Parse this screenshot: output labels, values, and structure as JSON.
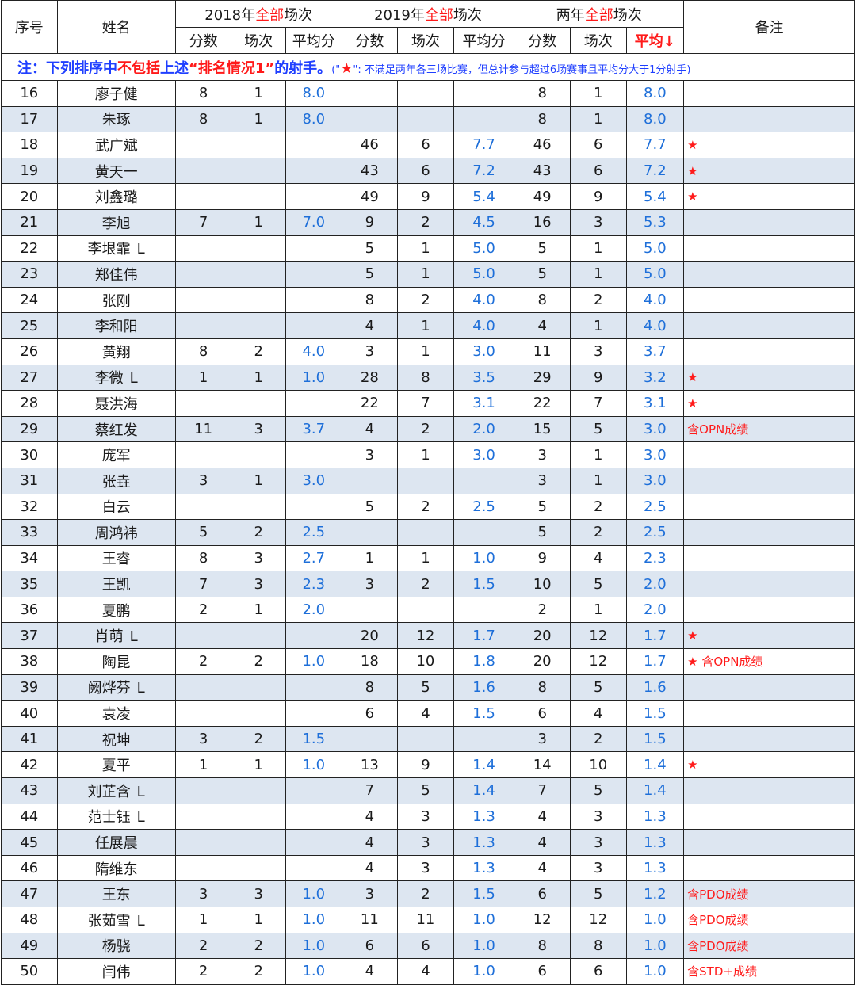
{
  "header": {
    "seq": "序号",
    "name": "姓名",
    "y2018": {
      "prefix": "2018年",
      "mid": "全部",
      "suffix": "场次"
    },
    "y2019": {
      "prefix": "2019年",
      "mid": "全部",
      "suffix": "场次"
    },
    "both": {
      "prefix": "两年",
      "mid": "全部",
      "suffix": "场次"
    },
    "remark": "备注",
    "sub": {
      "score": "分数",
      "games": "场次",
      "avg": "平均分",
      "avg_sorted": "平均↓"
    }
  },
  "note": {
    "lead": "注：下列排序中",
    "red1": "不包括",
    "mid": "上述",
    "red2": "“排名情况1”",
    "tail": "的射手。",
    "small_a": "(\"",
    "star": "★",
    "small_b": "\": 不满足两年各三场比赛，但总计参与超过6场赛事且平均分大于1分射手)"
  },
  "rows": [
    {
      "seq": "16",
      "name": "廖子健",
      "l": "",
      "s18": "8",
      "g18": "1",
      "a18": "8.0",
      "s19": "",
      "g19": "",
      "a19": "",
      "st": "8",
      "gt": "1",
      "at": "8.0",
      "remark": ""
    },
    {
      "seq": "17",
      "name": "朱琢",
      "l": "",
      "s18": "8",
      "g18": "1",
      "a18": "8.0",
      "s19": "",
      "g19": "",
      "a19": "",
      "st": "8",
      "gt": "1",
      "at": "8.0",
      "remark": ""
    },
    {
      "seq": "18",
      "name": "武广斌",
      "l": "",
      "s18": "",
      "g18": "",
      "a18": "",
      "s19": "46",
      "g19": "6",
      "a19": "7.7",
      "st": "46",
      "gt": "6",
      "at": "7.7",
      "remark": "★"
    },
    {
      "seq": "19",
      "name": "黄天一",
      "l": "",
      "s18": "",
      "g18": "",
      "a18": "",
      "s19": "43",
      "g19": "6",
      "a19": "7.2",
      "st": "43",
      "gt": "6",
      "at": "7.2",
      "remark": "★"
    },
    {
      "seq": "20",
      "name": "刘鑫璐",
      "l": "",
      "s18": "",
      "g18": "",
      "a18": "",
      "s19": "49",
      "g19": "9",
      "a19": "5.4",
      "st": "49",
      "gt": "9",
      "at": "5.4",
      "remark": "★"
    },
    {
      "seq": "21",
      "name": "李旭",
      "l": "",
      "s18": "7",
      "g18": "1",
      "a18": "7.0",
      "s19": "9",
      "g19": "2",
      "a19": "4.5",
      "st": "16",
      "gt": "3",
      "at": "5.3",
      "remark": ""
    },
    {
      "seq": "22",
      "name": "李垠霏",
      "l": "L",
      "s18": "",
      "g18": "",
      "a18": "",
      "s19": "5",
      "g19": "1",
      "a19": "5.0",
      "st": "5",
      "gt": "1",
      "at": "5.0",
      "remark": ""
    },
    {
      "seq": "23",
      "name": "郑佳伟",
      "l": "",
      "s18": "",
      "g18": "",
      "a18": "",
      "s19": "5",
      "g19": "1",
      "a19": "5.0",
      "st": "5",
      "gt": "1",
      "at": "5.0",
      "remark": ""
    },
    {
      "seq": "24",
      "name": "张刚",
      "l": "",
      "s18": "",
      "g18": "",
      "a18": "",
      "s19": "8",
      "g19": "2",
      "a19": "4.0",
      "st": "8",
      "gt": "2",
      "at": "4.0",
      "remark": ""
    },
    {
      "seq": "25",
      "name": "李和阳",
      "l": "",
      "s18": "",
      "g18": "",
      "a18": "",
      "s19": "4",
      "g19": "1",
      "a19": "4.0",
      "st": "4",
      "gt": "1",
      "at": "4.0",
      "remark": ""
    },
    {
      "seq": "26",
      "name": "黄翔",
      "l": "",
      "s18": "8",
      "g18": "2",
      "a18": "4.0",
      "s19": "3",
      "g19": "1",
      "a19": "3.0",
      "st": "11",
      "gt": "3",
      "at": "3.7",
      "remark": ""
    },
    {
      "seq": "27",
      "name": "李微",
      "l": "L",
      "s18": "1",
      "g18": "1",
      "a18": "1.0",
      "s19": "28",
      "g19": "8",
      "a19": "3.5",
      "st": "29",
      "gt": "9",
      "at": "3.2",
      "remark": "★"
    },
    {
      "seq": "28",
      "name": "聂洪海",
      "l": "",
      "s18": "",
      "g18": "",
      "a18": "",
      "s19": "22",
      "g19": "7",
      "a19": "3.1",
      "st": "22",
      "gt": "7",
      "at": "3.1",
      "remark": "★"
    },
    {
      "seq": "29",
      "name": "蔡红发",
      "l": "",
      "s18": "11",
      "g18": "3",
      "a18": "3.7",
      "s19": "4",
      "g19": "2",
      "a19": "2.0",
      "st": "15",
      "gt": "5",
      "at": "3.0",
      "remark": "含OPN成绩"
    },
    {
      "seq": "30",
      "name": "庞军",
      "l": "",
      "s18": "",
      "g18": "",
      "a18": "",
      "s19": "3",
      "g19": "1",
      "a19": "3.0",
      "st": "3",
      "gt": "1",
      "at": "3.0",
      "remark": ""
    },
    {
      "seq": "31",
      "name": "张垚",
      "l": "",
      "s18": "3",
      "g18": "1",
      "a18": "3.0",
      "s19": "",
      "g19": "",
      "a19": "",
      "st": "3",
      "gt": "1",
      "at": "3.0",
      "remark": ""
    },
    {
      "seq": "32",
      "name": "白云",
      "l": "",
      "s18": "",
      "g18": "",
      "a18": "",
      "s19": "5",
      "g19": "2",
      "a19": "2.5",
      "st": "5",
      "gt": "2",
      "at": "2.5",
      "remark": ""
    },
    {
      "seq": "33",
      "name": "周鸿祎",
      "l": "",
      "s18": "5",
      "g18": "2",
      "a18": "2.5",
      "s19": "",
      "g19": "",
      "a19": "",
      "st": "5",
      "gt": "2",
      "at": "2.5",
      "remark": ""
    },
    {
      "seq": "34",
      "name": "王睿",
      "l": "",
      "s18": "8",
      "g18": "3",
      "a18": "2.7",
      "s19": "1",
      "g19": "1",
      "a19": "1.0",
      "st": "9",
      "gt": "4",
      "at": "2.3",
      "remark": ""
    },
    {
      "seq": "35",
      "name": "王凯",
      "l": "",
      "s18": "7",
      "g18": "3",
      "a18": "2.3",
      "s19": "3",
      "g19": "2",
      "a19": "1.5",
      "st": "10",
      "gt": "5",
      "at": "2.0",
      "remark": ""
    },
    {
      "seq": "36",
      "name": "夏鹏",
      "l": "",
      "s18": "2",
      "g18": "1",
      "a18": "2.0",
      "s19": "",
      "g19": "",
      "a19": "",
      "st": "2",
      "gt": "1",
      "at": "2.0",
      "remark": ""
    },
    {
      "seq": "37",
      "name": "肖萌",
      "l": "L",
      "s18": "",
      "g18": "",
      "a18": "",
      "s19": "20",
      "g19": "12",
      "a19": "1.7",
      "st": "20",
      "gt": "12",
      "at": "1.7",
      "remark": "★"
    },
    {
      "seq": "38",
      "name": "陶昆",
      "l": "",
      "s18": "2",
      "g18": "2",
      "a18": "1.0",
      "s19": "18",
      "g19": "10",
      "a19": "1.8",
      "st": "20",
      "gt": "12",
      "at": "1.7",
      "remark": "★ 含OPN成绩"
    },
    {
      "seq": "39",
      "name": "阙烨芬",
      "l": "L",
      "s18": "",
      "g18": "",
      "a18": "",
      "s19": "8",
      "g19": "5",
      "a19": "1.6",
      "st": "8",
      "gt": "5",
      "at": "1.6",
      "remark": ""
    },
    {
      "seq": "40",
      "name": "袁凌",
      "l": "",
      "s18": "",
      "g18": "",
      "a18": "",
      "s19": "6",
      "g19": "4",
      "a19": "1.5",
      "st": "6",
      "gt": "4",
      "at": "1.5",
      "remark": ""
    },
    {
      "seq": "41",
      "name": "祝坤",
      "l": "",
      "s18": "3",
      "g18": "2",
      "a18": "1.5",
      "s19": "",
      "g19": "",
      "a19": "",
      "st": "3",
      "gt": "2",
      "at": "1.5",
      "remark": ""
    },
    {
      "seq": "42",
      "name": "夏平",
      "l": "",
      "s18": "1",
      "g18": "1",
      "a18": "1.0",
      "s19": "13",
      "g19": "9",
      "a19": "1.4",
      "st": "14",
      "gt": "10",
      "at": "1.4",
      "remark": "★"
    },
    {
      "seq": "43",
      "name": "刘芷含",
      "l": "L",
      "s18": "",
      "g18": "",
      "a18": "",
      "s19": "7",
      "g19": "5",
      "a19": "1.4",
      "st": "7",
      "gt": "5",
      "at": "1.4",
      "remark": ""
    },
    {
      "seq": "44",
      "name": "范士钰",
      "l": "L",
      "s18": "",
      "g18": "",
      "a18": "",
      "s19": "4",
      "g19": "3",
      "a19": "1.3",
      "st": "4",
      "gt": "3",
      "at": "1.3",
      "remark": ""
    },
    {
      "seq": "45",
      "name": "任展晨",
      "l": "",
      "s18": "",
      "g18": "",
      "a18": "",
      "s19": "4",
      "g19": "3",
      "a19": "1.3",
      "st": "4",
      "gt": "3",
      "at": "1.3",
      "remark": ""
    },
    {
      "seq": "46",
      "name": "隋维东",
      "l": "",
      "s18": "",
      "g18": "",
      "a18": "",
      "s19": "4",
      "g19": "3",
      "a19": "1.3",
      "st": "4",
      "gt": "3",
      "at": "1.3",
      "remark": ""
    },
    {
      "seq": "47",
      "name": "王东",
      "l": "",
      "s18": "3",
      "g18": "3",
      "a18": "1.0",
      "s19": "3",
      "g19": "2",
      "a19": "1.5",
      "st": "6",
      "gt": "5",
      "at": "1.2",
      "remark": "含PDO成绩"
    },
    {
      "seq": "48",
      "name": "张茹雪",
      "l": "L",
      "s18": "1",
      "g18": "1",
      "a18": "1.0",
      "s19": "11",
      "g19": "11",
      "a19": "1.0",
      "st": "12",
      "gt": "12",
      "at": "1.0",
      "remark": "含PDO成绩"
    },
    {
      "seq": "49",
      "name": "杨骁",
      "l": "",
      "s18": "2",
      "g18": "2",
      "a18": "1.0",
      "s19": "6",
      "g19": "6",
      "a19": "1.0",
      "st": "8",
      "gt": "8",
      "at": "1.0",
      "remark": "含PDO成绩"
    },
    {
      "seq": "50",
      "name": "闫伟",
      "l": "",
      "s18": "2",
      "g18": "2",
      "a18": "1.0",
      "s19": "4",
      "g19": "4",
      "a19": "1.0",
      "st": "6",
      "gt": "6",
      "at": "1.0",
      "remark": "含STD+成绩"
    }
  ]
}
